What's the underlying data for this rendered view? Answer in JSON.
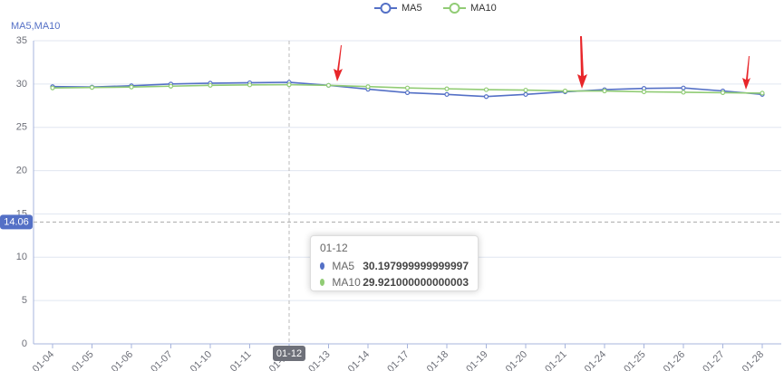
{
  "chart_data": {
    "type": "line",
    "y_axis_label": "MA5,MA10",
    "categories": [
      "01-04",
      "01-05",
      "01-06",
      "01-07",
      "01-10",
      "01-11",
      "01-12",
      "01-13",
      "01-14",
      "01-17",
      "01-18",
      "01-19",
      "01-20",
      "01-21",
      "01-24",
      "01-25",
      "01-26",
      "01-27",
      "01-28"
    ],
    "series": [
      {
        "name": "MA5",
        "color": "#5470c6",
        "values": [
          29.7,
          29.65,
          29.8,
          30.0,
          30.1,
          30.15,
          30.197999999999997,
          29.85,
          29.4,
          29.0,
          28.8,
          28.55,
          28.8,
          29.1,
          29.35,
          29.5,
          29.55,
          29.2,
          28.8
        ]
      },
      {
        "name": "MA10",
        "color": "#91cc75",
        "values": [
          29.55,
          29.6,
          29.65,
          29.75,
          29.85,
          29.9,
          29.921000000000003,
          29.85,
          29.7,
          29.55,
          29.45,
          29.35,
          29.3,
          29.2,
          29.2,
          29.1,
          29.05,
          29.0,
          28.95
        ]
      }
    ],
    "ylim": [
      0,
      35
    ],
    "yticks": [
      0,
      5,
      10,
      15,
      20,
      25,
      30,
      35
    ],
    "grid": true,
    "legend": "top",
    "crosshair": {
      "x": "01-12",
      "y": 14.06
    }
  }
}
